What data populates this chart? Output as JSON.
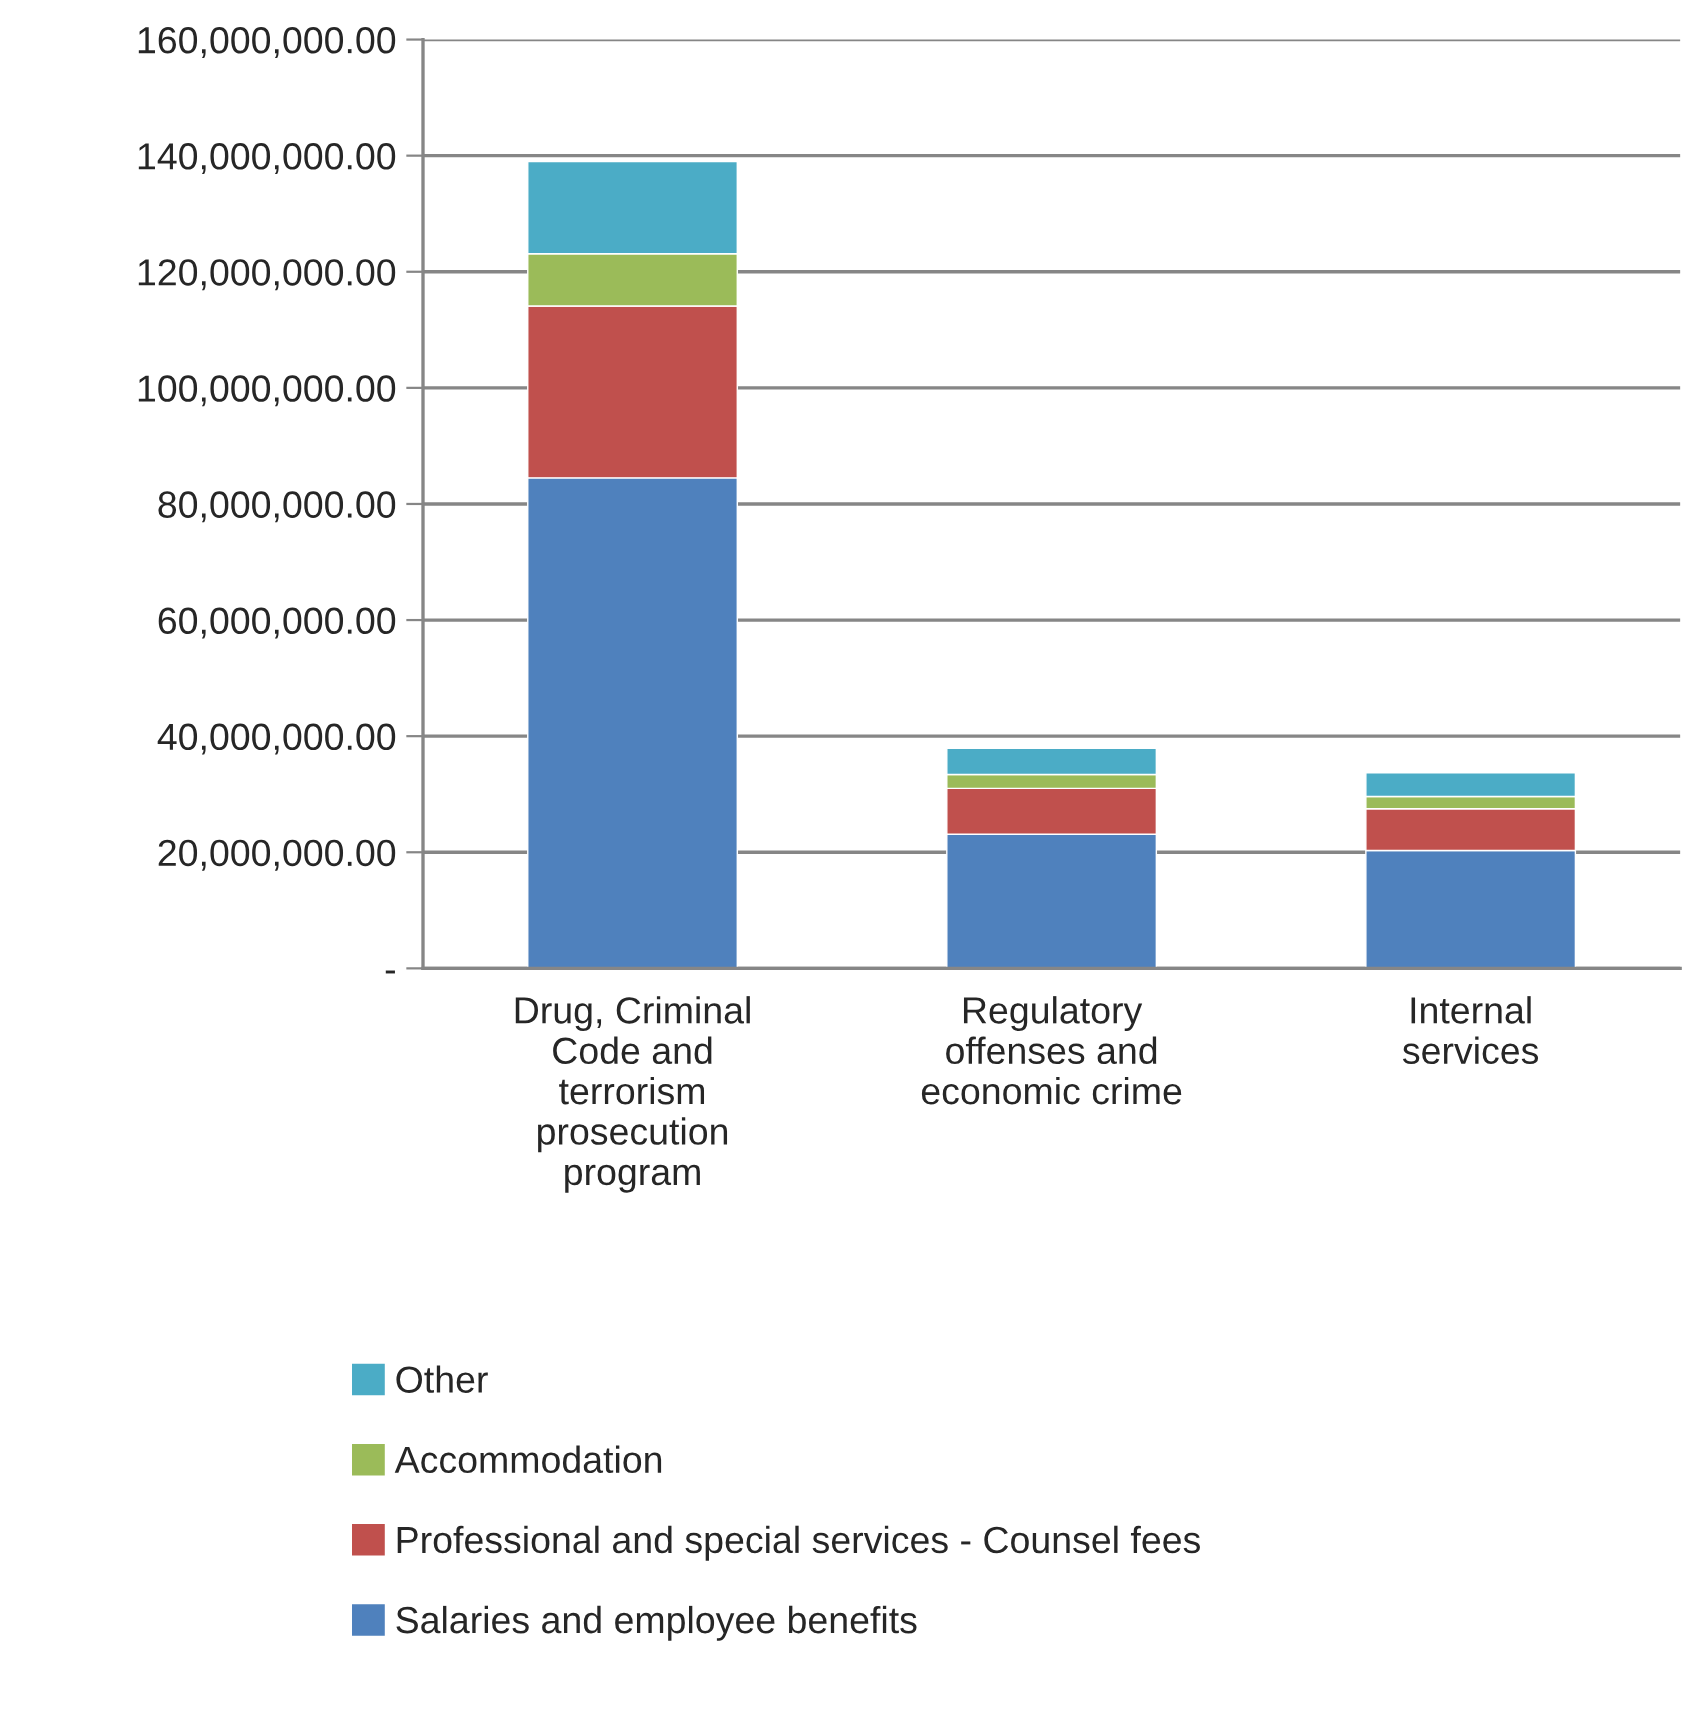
{
  "chart_data": {
    "type": "bar",
    "stacked": true,
    "categories": [
      "Drug, Criminal Code and terrorism prosecution program",
      "Regulatory offenses and economic crime",
      "Internal services"
    ],
    "series": [
      {
        "name": "Salaries and employee benefits",
        "color": "#4f81bd",
        "values": [
          84500000,
          23100000,
          20300000
        ]
      },
      {
        "name": "Professional and special services - Counsel fees",
        "color": "#c0504d",
        "values": [
          29600000,
          7900000,
          7200000
        ]
      },
      {
        "name": "Accommodation",
        "color": "#9bbb59",
        "values": [
          9000000,
          2400000,
          2100000
        ]
      },
      {
        "name": "Other",
        "color": "#4bacc6",
        "values": [
          15900000,
          4500000,
          4100000
        ]
      }
    ],
    "ylim": [
      0,
      160000000
    ],
    "yticks": [
      {
        "value": 0,
        "label": "-"
      },
      {
        "value": 20000000,
        "label": "20,000,000.00"
      },
      {
        "value": 40000000,
        "label": "40,000,000.00"
      },
      {
        "value": 60000000,
        "label": "60,000,000.00"
      },
      {
        "value": 80000000,
        "label": "80,000,000.00"
      },
      {
        "value": 100000000,
        "label": "100,000,000.00"
      },
      {
        "value": 120000000,
        "label": "120,000,000.00"
      },
      {
        "value": 140000000,
        "label": "140,000,000.00"
      },
      {
        "value": 160000000,
        "label": "160,000,000.00"
      }
    ],
    "grid": "y",
    "legend": "bottom"
  }
}
